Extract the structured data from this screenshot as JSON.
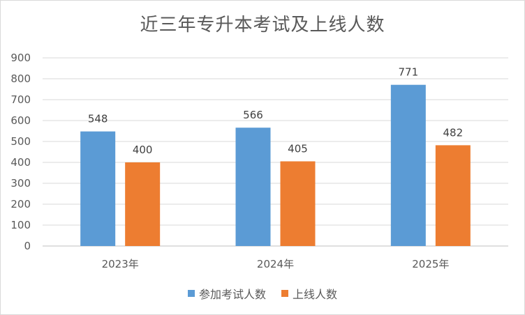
{
  "chart_data": {
    "type": "bar",
    "title": "近三年专升本考试及上线人数",
    "categories": [
      "2023年",
      "2024年",
      "2025年"
    ],
    "series": [
      {
        "name": "参加考试人数",
        "values": [
          548,
          566,
          771
        ],
        "color": "#5b9bd5"
      },
      {
        "name": "上线人数",
        "values": [
          400,
          405,
          482
        ],
        "color": "#ed7d31"
      }
    ],
    "ylim": [
      0,
      900
    ],
    "yticks": [
      0,
      100,
      200,
      300,
      400,
      500,
      600,
      700,
      800,
      900
    ],
    "grid": true,
    "legend_position": "bottom"
  }
}
